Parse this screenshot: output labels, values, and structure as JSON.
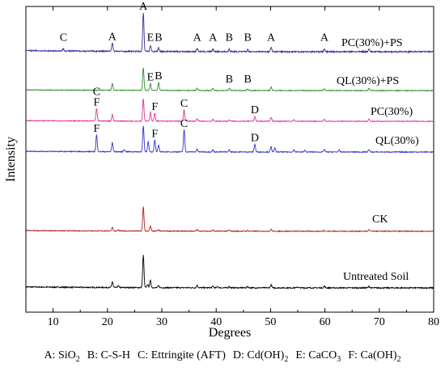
{
  "chart_data": {
    "type": "line",
    "xlabel": "Degrees",
    "ylabel": "Intensity",
    "xlim": [
      5,
      80
    ],
    "xticks": [
      10,
      20,
      30,
      40,
      50,
      60,
      70,
      80
    ],
    "grid": false,
    "series": [
      {
        "name": "Untreated Soil",
        "color": "#000000",
        "peaks": [
          [
            20.9,
            0.18
          ],
          [
            22.0,
            0.05
          ],
          [
            26.6,
            1.0
          ],
          [
            27.4,
            0.1
          ],
          [
            27.9,
            0.22
          ],
          [
            29.4,
            0.06
          ],
          [
            36.5,
            0.07
          ],
          [
            39.4,
            0.05
          ],
          [
            40.3,
            0.04
          ],
          [
            42.4,
            0.04
          ],
          [
            45.8,
            0.04
          ],
          [
            50.1,
            0.09
          ],
          [
            54.9,
            0.03
          ],
          [
            59.9,
            0.05
          ],
          [
            68.1,
            0.05
          ]
        ],
        "annotations": []
      },
      {
        "name": "CK",
        "color": "#b22222",
        "peaks": [
          [
            20.9,
            0.16
          ],
          [
            22.0,
            0.04
          ],
          [
            26.6,
            1.0
          ],
          [
            27.9,
            0.2
          ],
          [
            29.4,
            0.05
          ],
          [
            36.5,
            0.06
          ],
          [
            39.4,
            0.04
          ],
          [
            42.4,
            0.04
          ],
          [
            45.8,
            0.03
          ],
          [
            50.1,
            0.08
          ],
          [
            59.9,
            0.04
          ],
          [
            68.1,
            0.06
          ]
        ],
        "annotations": []
      },
      {
        "name": "QL(30%)",
        "color": "#3333cc",
        "peaks": [
          [
            18.0,
            0.65
          ],
          [
            20.9,
            0.35
          ],
          [
            23.1,
            0.1
          ],
          [
            26.6,
            1.0
          ],
          [
            27.5,
            0.4
          ],
          [
            28.7,
            0.45
          ],
          [
            29.4,
            0.25
          ],
          [
            34.1,
            0.85
          ],
          [
            36.5,
            0.1
          ],
          [
            39.4,
            0.08
          ],
          [
            42.4,
            0.08
          ],
          [
            47.1,
            0.3
          ],
          [
            50.1,
            0.2
          ],
          [
            50.8,
            0.15
          ],
          [
            54.3,
            0.08
          ],
          [
            56.3,
            0.06
          ],
          [
            59.9,
            0.1
          ],
          [
            62.6,
            0.08
          ],
          [
            68.1,
            0.1
          ]
        ],
        "annotations": [
          {
            "label": "F",
            "x": 18.0
          },
          {
            "label": "F",
            "x": 28.7
          },
          {
            "label": "C",
            "x": 34.1
          },
          {
            "label": "D",
            "x": 47.1
          }
        ]
      },
      {
        "name": "PC(30%)",
        "color": "#e0309a",
        "peaks": [
          [
            18.0,
            0.55
          ],
          [
            20.9,
            0.3
          ],
          [
            26.6,
            1.0
          ],
          [
            27.9,
            0.4
          ],
          [
            28.7,
            0.35
          ],
          [
            34.1,
            0.5
          ],
          [
            36.5,
            0.1
          ],
          [
            39.4,
            0.08
          ],
          [
            42.4,
            0.06
          ],
          [
            47.1,
            0.22
          ],
          [
            50.1,
            0.18
          ],
          [
            54.3,
            0.08
          ],
          [
            59.9,
            0.08
          ],
          [
            68.1,
            0.1
          ]
        ],
        "annotations": [
          {
            "label": "F",
            "x": 18.0
          },
          {
            "label": "C",
            "x": 18.0
          },
          {
            "label": "F",
            "x": 28.7
          },
          {
            "label": "C",
            "x": 34.1
          },
          {
            "label": "D",
            "x": 47.1
          }
        ]
      },
      {
        "name": "QL(30%)+PS",
        "color": "#2e8b2e",
        "peaks": [
          [
            20.9,
            0.3
          ],
          [
            26.6,
            1.0
          ],
          [
            27.9,
            0.3
          ],
          [
            29.4,
            0.35
          ],
          [
            36.5,
            0.1
          ],
          [
            39.4,
            0.08
          ],
          [
            42.4,
            0.1
          ],
          [
            45.8,
            0.08
          ],
          [
            50.1,
            0.15
          ],
          [
            59.9,
            0.08
          ],
          [
            68.1,
            0.1
          ]
        ],
        "annotations": [
          {
            "label": "E",
            "x": 27.9
          },
          {
            "label": "B",
            "x": 29.4
          },
          {
            "label": "B",
            "x": 42.4
          },
          {
            "label": "B",
            "x": 45.8
          }
        ]
      },
      {
        "name": "PC(30%)+PS",
        "color": "#2f2f99",
        "peaks": [
          [
            11.9,
            0.06
          ],
          [
            20.9,
            0.22
          ],
          [
            26.6,
            1.0
          ],
          [
            27.9,
            0.15
          ],
          [
            29.4,
            0.1
          ],
          [
            36.5,
            0.08
          ],
          [
            39.4,
            0.06
          ],
          [
            42.4,
            0.06
          ],
          [
            45.8,
            0.05
          ],
          [
            50.1,
            0.12
          ],
          [
            59.9,
            0.06
          ],
          [
            68.1,
            0.08
          ]
        ],
        "annotations": [
          {
            "label": "C",
            "x": 11.9
          },
          {
            "label": "A",
            "x": 20.9
          },
          {
            "label": "A",
            "x": 26.6
          },
          {
            "label": "E",
            "x": 27.9
          },
          {
            "label": "B",
            "x": 29.4
          },
          {
            "label": "A",
            "x": 36.5
          },
          {
            "label": "A",
            "x": 39.4
          },
          {
            "label": "B",
            "x": 42.4
          },
          {
            "label": "B",
            "x": 45.8
          },
          {
            "label": "A",
            "x": 50.1
          },
          {
            "label": "A",
            "x": 59.9
          }
        ]
      }
    ],
    "phase_legend": [
      {
        "key": "A",
        "name": "SiO",
        "sub": "2"
      },
      {
        "key": "B",
        "name": "C-S-H",
        "sub": ""
      },
      {
        "key": "C",
        "name": "Ettringite (AFT)",
        "sub": ""
      },
      {
        "key": "D",
        "name": "Cd(OH)",
        "sub": "2"
      },
      {
        "key": "E",
        "name": "CaCO",
        "sub": "3"
      },
      {
        "key": "F",
        "name": "Ca(OH)",
        "sub": "2"
      }
    ]
  }
}
